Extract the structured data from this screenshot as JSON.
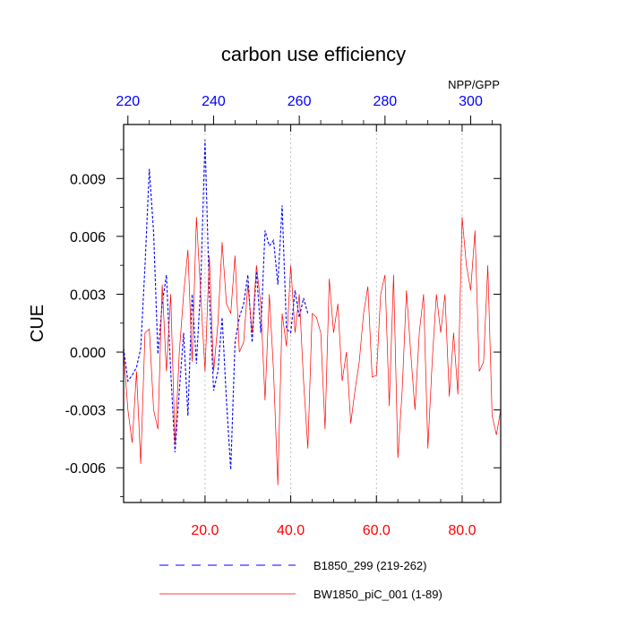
{
  "chart_data": {
    "type": "line",
    "title": "carbon use efficiency",
    "corner_label": "NPP/GPP",
    "ylabel": "CUE",
    "xlabel": "",
    "ylim": [
      -0.0078,
      0.0118
    ],
    "y_ticks": [
      -0.006,
      -0.003,
      0.0,
      0.003,
      0.006,
      0.009
    ],
    "y_tick_labels": [
      "-0.006",
      "-0.003",
      "0.000",
      "0.003",
      "0.006",
      "0.009"
    ],
    "bottom_axis": {
      "range": [
        1,
        89
      ],
      "ticks": [
        20,
        40,
        60,
        80
      ],
      "tick_labels": [
        "20.0",
        "40.0",
        "60.0",
        "80.0"
      ],
      "color": "#ff0000"
    },
    "top_axis": {
      "range": [
        219,
        307
      ],
      "ticks": [
        220,
        240,
        260,
        280,
        300
      ],
      "tick_labels": [
        "220",
        "240",
        "260",
        "280",
        "300"
      ],
      "color": "#0000ff"
    },
    "grid": "vertical dotted at bottom-axis major ticks",
    "legend_position": "bottom",
    "series": [
      {
        "name": "B1850_299 (219-262)",
        "color": "#0000ff",
        "style": "dashed",
        "axis": "top",
        "x": [
          219,
          220,
          221,
          222,
          223,
          224,
          225,
          226,
          227,
          228,
          229,
          230,
          231,
          232,
          233,
          234,
          235,
          236,
          237,
          238,
          239,
          240,
          241,
          242,
          243,
          244,
          245,
          246,
          247,
          248,
          249,
          250,
          251,
          252,
          253,
          254,
          255,
          256,
          257,
          258,
          259,
          260,
          261,
          262
        ],
        "values": [
          0.0002,
          -0.0015,
          -0.0012,
          -0.0008,
          0.0002,
          0.0045,
          0.0095,
          0.0062,
          -0.0001,
          0.0025,
          0.004,
          -0.001,
          -0.0052,
          -0.002,
          0.001,
          -0.0033,
          0.003,
          -0.0006,
          0.0035,
          0.011,
          0.003,
          -0.002,
          -0.001,
          0.0018,
          -0.0025,
          -0.0061,
          0.0005,
          0.0018,
          0.0025,
          0.004,
          0.0005,
          0.0042,
          0.001,
          0.0063,
          0.0055,
          0.0058,
          0.0035,
          0.0076,
          0.0012,
          0.001,
          0.0032,
          0.0018,
          0.0028,
          0.002
        ]
      },
      {
        "name": "BW1850_piC_001 (1-89)",
        "color": "#ff0000",
        "style": "solid",
        "axis": "bottom",
        "x": [
          1,
          2,
          3,
          4,
          5,
          6,
          7,
          8,
          9,
          10,
          11,
          12,
          13,
          14,
          15,
          16,
          17,
          18,
          19,
          20,
          21,
          22,
          23,
          24,
          25,
          26,
          27,
          28,
          29,
          30,
          31,
          32,
          33,
          34,
          35,
          36,
          37,
          38,
          39,
          40,
          41,
          42,
          43,
          44,
          45,
          46,
          47,
          48,
          49,
          50,
          51,
          52,
          53,
          54,
          55,
          56,
          57,
          58,
          59,
          60,
          61,
          62,
          63,
          64,
          65,
          66,
          67,
          68,
          69,
          70,
          71,
          72,
          73,
          74,
          75,
          76,
          77,
          78,
          79,
          80,
          81,
          82,
          83,
          84,
          85,
          86,
          87,
          88,
          89
        ],
        "values": [
          0.0,
          -0.003,
          -0.0047,
          -0.001,
          -0.0058,
          0.001,
          0.0012,
          -0.003,
          -0.004,
          0.0035,
          -0.001,
          0.003,
          -0.0048,
          0.0,
          0.003,
          0.0053,
          -0.0005,
          0.007,
          0.003,
          -0.001,
          0.005,
          -0.001,
          0.0015,
          0.0057,
          0.0025,
          0.002,
          0.005,
          0.0,
          0.0005,
          0.0035,
          0.001,
          0.0045,
          0.0025,
          -0.0025,
          0.003,
          -0.001,
          -0.0069,
          0.002,
          0.0003,
          0.0045,
          0.001,
          0.003,
          -0.0015,
          -0.005,
          0.002,
          0.0018,
          0.001,
          -0.004,
          0.0038,
          0.001,
          0.0025,
          -0.0015,
          0.0,
          -0.0037,
          -0.002,
          -0.0005,
          0.002,
          0.0034,
          -0.0013,
          -0.0012,
          0.003,
          0.004,
          -0.0028,
          0.004,
          -0.0055,
          -0.002,
          0.0032,
          0.0,
          -0.003,
          0.001,
          0.003,
          -0.005,
          -0.0005,
          0.003,
          0.001,
          0.003,
          -0.0023,
          0.001,
          -0.0022,
          0.007,
          0.0045,
          0.0032,
          0.0063,
          -0.001,
          -0.0005,
          0.0045,
          -0.0033,
          -0.0043,
          -0.003
        ]
      }
    ]
  }
}
